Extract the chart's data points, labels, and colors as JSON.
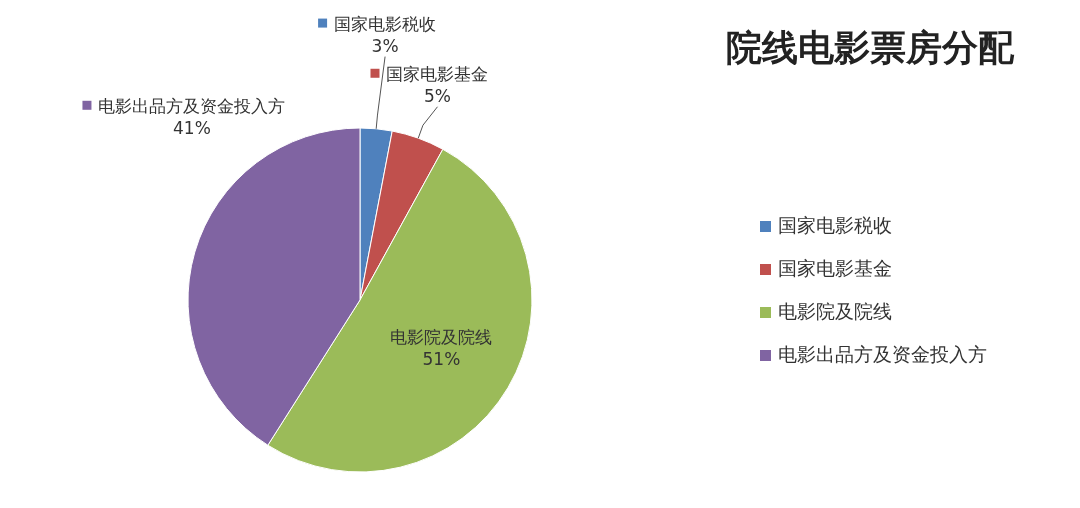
{
  "chart_data": {
    "type": "pie",
    "title": "院线电影票房分配",
    "categories": [
      "国家电影税收",
      "国家电影基金",
      "电影院及院线",
      "电影出品方及资金投入方"
    ],
    "values": [
      3,
      5,
      51,
      41
    ],
    "colors": [
      "#4f81bd",
      "#c0504d",
      "#9bbb59",
      "#8064a2"
    ],
    "value_labels": [
      "3%",
      "5%",
      "51%",
      "41%"
    ],
    "legend": "right"
  }
}
